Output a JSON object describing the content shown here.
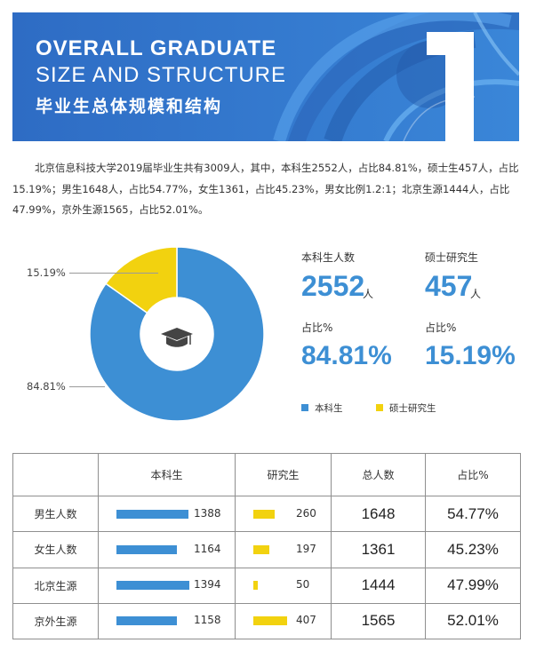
{
  "banner": {
    "line1": "OVERALL  GRADUATE",
    "line2": "SIZE AND STRUCTURE",
    "line3": "毕业生总体规模和结构",
    "section_number": "1"
  },
  "intro": "北京信息科技大学2019届毕业生共有3009人，其中，本科生2552人，占比84.81%，硕士生457人，占比15.19%；男生1648人，占比54.77%，女生1361，占比45.23%，男女比例1.2:1；北京生源1444人，占比47.99%，京外生源1565，占比52.01%。",
  "colors": {
    "banner_bg": "#2f71c8",
    "blue": "#3d8fd4",
    "yellow": "#f2d20f"
  },
  "stats": {
    "undergrad": {
      "title": "本科生人数",
      "value": "2552",
      "unit": "人",
      "pct_title": "占比%",
      "pct": "84.81%"
    },
    "master": {
      "title": "硕士研究生",
      "value": "457",
      "unit": "人",
      "pct_title": "占比%",
      "pct": "15.19%"
    }
  },
  "icons": {
    "donut_center": "graduation-cap-icon"
  },
  "chart_data": [
    {
      "type": "pie",
      "style": "donut",
      "categories": [
        "本科生",
        "硕士研究生"
      ],
      "values": [
        84.81,
        15.19
      ],
      "labels": [
        "84.81%",
        "15.19%"
      ],
      "colors": [
        "#3d8fd4",
        "#f2d20f"
      ],
      "legend": [
        "本科生",
        "硕士研究生"
      ],
      "legend_position": "bottom"
    },
    {
      "type": "table",
      "columns": [
        "",
        "本科生",
        "研究生",
        "总人数",
        "占比%"
      ],
      "rows": [
        {
          "label": "男生人数",
          "undergrad": 1388,
          "grad": 260,
          "total": "1648",
          "ratio": "54.77%"
        },
        {
          "label": "女生人数",
          "undergrad": 1164,
          "grad": 197,
          "total": "1361",
          "ratio": "45.23%"
        },
        {
          "label": "北京生源",
          "undergrad": 1394,
          "grad": 50,
          "total": "1444",
          "ratio": "47.99%"
        },
        {
          "label": "京外生源",
          "undergrad": 1158,
          "grad": 407,
          "total": "1565",
          "ratio": "52.01%"
        }
      ]
    }
  ]
}
